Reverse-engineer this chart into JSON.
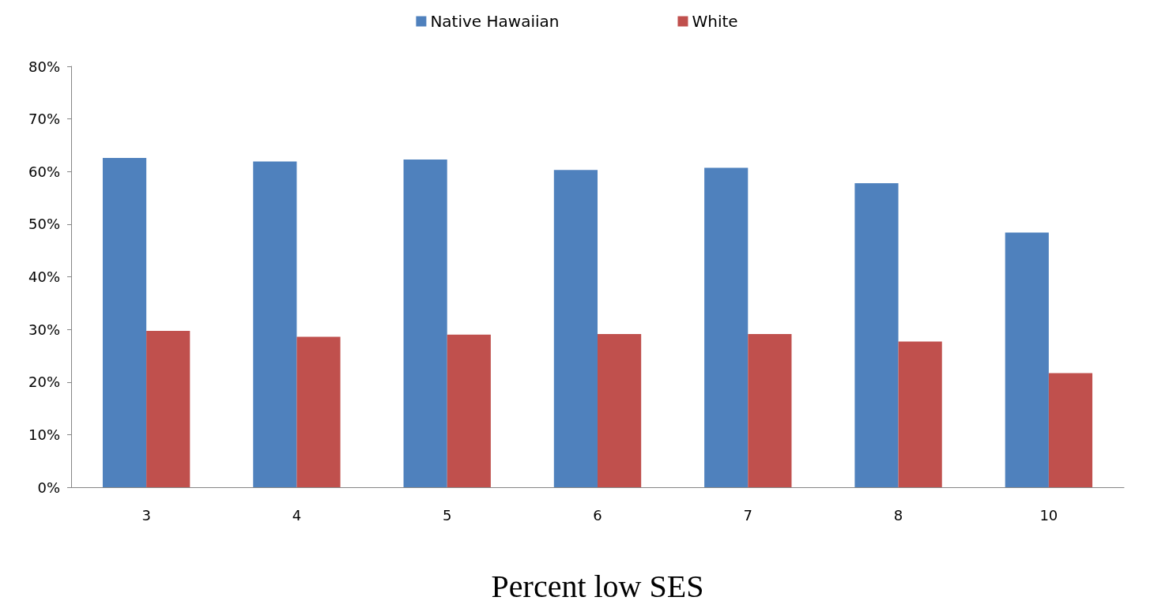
{
  "chart_data": {
    "type": "bar",
    "xlabel": "Percent low SES",
    "categories": [
      "3",
      "4",
      "5",
      "6",
      "7",
      "8",
      "10"
    ],
    "series": [
      {
        "name": "Native Hawaiian",
        "color": "#4f81bd",
        "values": [
          62.6,
          61.9,
          62.3,
          60.3,
          60.7,
          57.8,
          48.4
        ]
      },
      {
        "name": "White",
        "color": "#c0504d",
        "values": [
          29.7,
          28.6,
          29.0,
          29.1,
          29.1,
          27.7,
          21.7
        ]
      }
    ],
    "ylim": [
      0,
      80
    ],
    "yticks": [
      {
        "value": 0,
        "label": "0%"
      },
      {
        "value": 10,
        "label": "10%"
      },
      {
        "value": 20,
        "label": "20%"
      },
      {
        "value": 30,
        "label": "30%"
      },
      {
        "value": 40,
        "label": "40%"
      },
      {
        "value": 50,
        "label": "50%"
      },
      {
        "value": 60,
        "label": "60%"
      },
      {
        "value": 70,
        "label": "70%"
      },
      {
        "value": 80,
        "label": "80%"
      }
    ],
    "grid": false,
    "legend": "top"
  }
}
